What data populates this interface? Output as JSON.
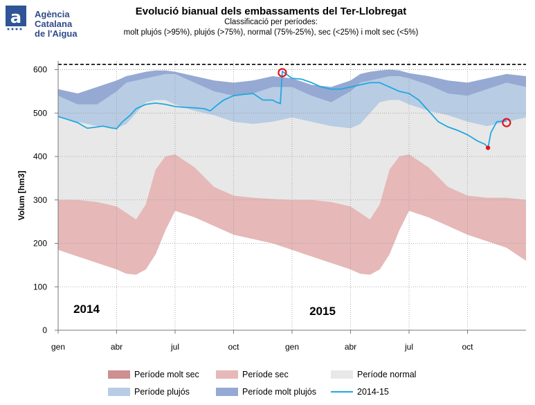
{
  "logo": {
    "line1": "Agència Catalana",
    "line2": "de l'Aigua"
  },
  "header": {
    "title": "Evolució bianual dels embassaments del Ter-Llobregat",
    "subtitle1": "Classificació per períodes:",
    "subtitle2": "molt plujós (>95%), plujós (>75%), normal (75%-25%), sec (<25%) i molt sec (<5%)"
  },
  "colors": {
    "molt_sec": "#cd8f91",
    "sec": "#e6b8b8",
    "normal": "#e8e8e8",
    "plujos": "#b8cce4",
    "molt_plujos": "#95a9d3",
    "line": "#1fa8df",
    "marker": "#e0141f"
  },
  "chart_data": {
    "type": "area",
    "xlabel": "",
    "ylabel": "Volum [hm3]",
    "ylim": [
      0,
      620
    ],
    "yticks": [
      0,
      100,
      200,
      300,
      400,
      500,
      600
    ],
    "x_tick_labels": [
      "gen",
      "abr",
      "jul",
      "oct",
      "gen",
      "abr",
      "jul",
      "oct"
    ],
    "x_tick_months": [
      0,
      3,
      6,
      9,
      12,
      15,
      18,
      21
    ],
    "year_labels": [
      "2014",
      "2015"
    ],
    "capacity_line": 612,
    "x_unit": "months since gen 2014",
    "bands": [
      {
        "name": "Període molt sec",
        "color": "molt_sec",
        "x": [
          0,
          1,
          2,
          3,
          3.5,
          4,
          4.5,
          5,
          5.5,
          6,
          7,
          8,
          9,
          10,
          11,
          12,
          13,
          14,
          15,
          15.5,
          16,
          16.5,
          17,
          17.5,
          18,
          19,
          20,
          21,
          22,
          23,
          24
        ],
        "values": [
          185,
          170,
          155,
          140,
          130,
          128,
          140,
          175,
          230,
          275,
          260,
          240,
          220,
          210,
          200,
          185,
          170,
          155,
          140,
          130,
          128,
          140,
          175,
          230,
          275,
          260,
          240,
          220,
          205,
          190,
          160
        ]
      },
      {
        "name": "Període sec",
        "color": "sec",
        "x": [
          0,
          1,
          2,
          3,
          3.5,
          4,
          4.5,
          5,
          5.5,
          6,
          7,
          8,
          9,
          10,
          11,
          12,
          13,
          14,
          15,
          15.5,
          16,
          16.5,
          17,
          17.5,
          18,
          19,
          20,
          21,
          22,
          23,
          24
        ],
        "values": [
          300,
          300,
          295,
          285,
          270,
          255,
          290,
          370,
          400,
          405,
          375,
          330,
          310,
          305,
          302,
          300,
          300,
          295,
          285,
          270,
          255,
          290,
          370,
          400,
          405,
          375,
          330,
          310,
          305,
          305,
          300
        ]
      },
      {
        "name": "Període normal",
        "color": "normal",
        "x": [
          0,
          1,
          2,
          3,
          3.5,
          4,
          4.5,
          5,
          5.5,
          6,
          7,
          8,
          9,
          10,
          11,
          12,
          13,
          14,
          15,
          15.5,
          16,
          16.5,
          17,
          17.5,
          18,
          19,
          20,
          21,
          22,
          23,
          24
        ],
        "values": [
          490,
          480,
          470,
          465,
          475,
          500,
          525,
          530,
          530,
          520,
          505,
          495,
          480,
          475,
          480,
          490,
          480,
          470,
          465,
          475,
          500,
          525,
          530,
          530,
          520,
          505,
          495,
          480,
          470,
          480,
          490
        ]
      },
      {
        "name": "Període plujós",
        "color": "plujos",
        "x": [
          0,
          1,
          2,
          3,
          3.5,
          4,
          4.5,
          5,
          5.5,
          6,
          7,
          8,
          9,
          10,
          11,
          12,
          13,
          14,
          15,
          15.5,
          16,
          16.5,
          17,
          17.5,
          18,
          19,
          20,
          21,
          22,
          23,
          24
        ],
        "values": [
          540,
          520,
          520,
          550,
          570,
          575,
          580,
          585,
          590,
          590,
          570,
          550,
          540,
          545,
          560,
          560,
          540,
          525,
          550,
          570,
          575,
          580,
          585,
          585,
          580,
          565,
          545,
          540,
          555,
          570,
          560
        ]
      },
      {
        "name": "Període molt plujós",
        "color": "molt_plujos",
        "x": [
          0,
          1,
          2,
          3,
          3.5,
          4,
          4.5,
          5,
          5.5,
          6,
          7,
          8,
          9,
          10,
          11,
          12,
          13,
          14,
          15,
          15.5,
          16,
          16.5,
          17,
          17.5,
          18,
          19,
          20,
          21,
          22,
          23,
          24
        ],
        "values": [
          555,
          545,
          560,
          575,
          585,
          590,
          595,
          598,
          598,
          595,
          585,
          575,
          570,
          575,
          585,
          580,
          565,
          560,
          575,
          590,
          595,
          598,
          600,
          598,
          592,
          585,
          575,
          570,
          580,
          590,
          585
        ]
      }
    ],
    "series": [
      {
        "name": "2014-15",
        "color": "line",
        "x": [
          0,
          0.5,
          1,
          1.3,
          1.5,
          2,
          2.3,
          2.7,
          3,
          3.3,
          3.7,
          4,
          4.5,
          5,
          5.5,
          6,
          6.5,
          7,
          7.5,
          7.8,
          8.2,
          8.5,
          9,
          9.5,
          10,
          10.5,
          11,
          11.2,
          11.4,
          11.5,
          12,
          12.5,
          13,
          13.5,
          14,
          14.5,
          15,
          15.5,
          16,
          16.5,
          17,
          17.5,
          18,
          18.5,
          19,
          19.5,
          20,
          20.5,
          21,
          21.5,
          21.9,
          22.05,
          22.2,
          22.5,
          23
        ],
        "values": [
          492,
          485,
          478,
          470,
          465,
          468,
          470,
          466,
          464,
          480,
          495,
          510,
          520,
          523,
          520,
          515,
          513,
          512,
          510,
          505,
          520,
          530,
          540,
          543,
          545,
          530,
          530,
          525,
          522,
          596,
          580,
          578,
          570,
          560,
          555,
          555,
          560,
          565,
          570,
          570,
          560,
          550,
          545,
          530,
          505,
          480,
          468,
          460,
          450,
          436,
          428,
          420,
          455,
          480,
          482
        ]
      }
    ],
    "markers": [
      {
        "x": 11.5,
        "y": 593,
        "style": "ring"
      },
      {
        "x": 22.05,
        "y": 420,
        "style": "dot"
      },
      {
        "x": 23,
        "y": 478,
        "style": "ring"
      }
    ]
  },
  "legend": [
    {
      "label": "Període molt sec",
      "color": "molt_sec",
      "kind": "box"
    },
    {
      "label": "Període sec",
      "color": "sec",
      "kind": "box"
    },
    {
      "label": "Període normal",
      "color": "normal",
      "kind": "box"
    },
    {
      "label": "Període plujós",
      "color": "plujos",
      "kind": "box"
    },
    {
      "label": "Període molt plujós",
      "color": "molt_plujos",
      "kind": "box"
    },
    {
      "label": "2014-15",
      "color": "line",
      "kind": "line"
    }
  ]
}
